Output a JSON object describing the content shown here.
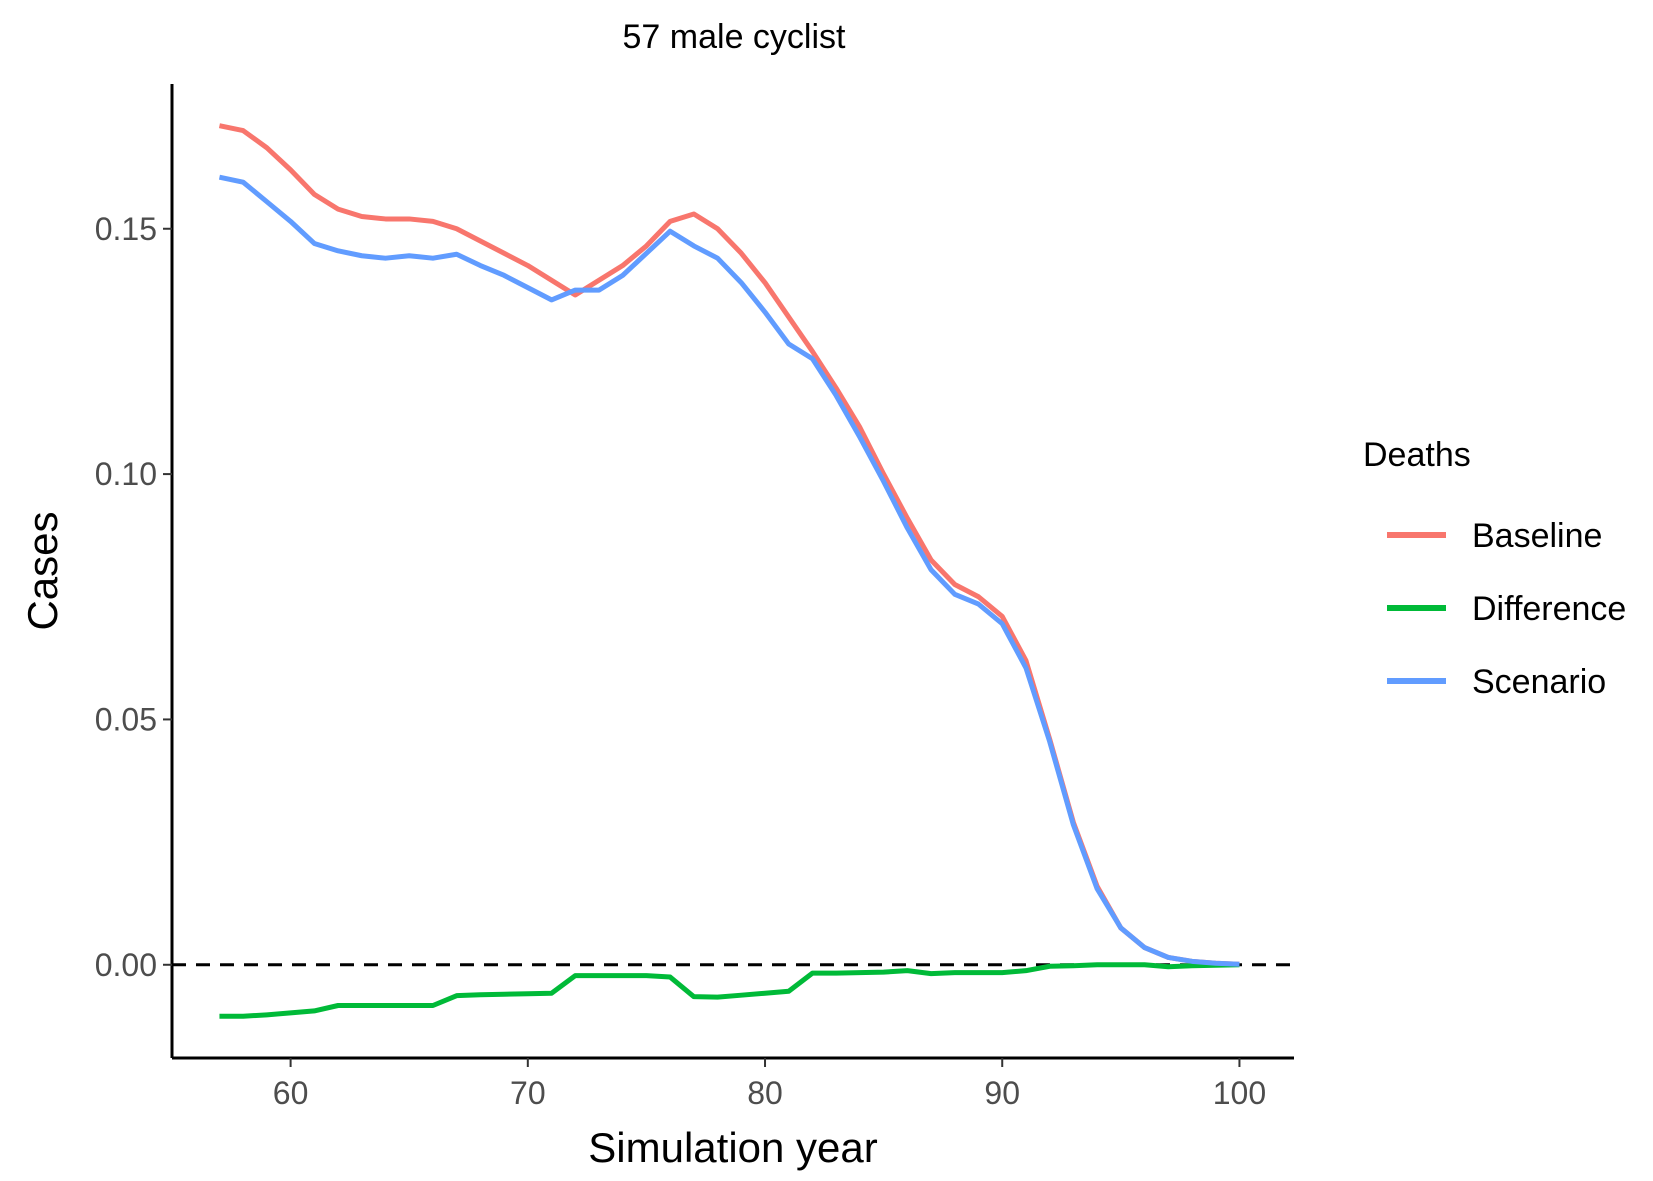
{
  "chart_data": {
    "type": "line",
    "title": "57 male cyclist",
    "xlabel": "Simulation year",
    "ylabel": "Cases",
    "xlim": [
      55,
      102.3
    ],
    "ylim": [
      -0.019,
      0.1795
    ],
    "xticks": [
      60,
      70,
      80,
      90,
      100
    ],
    "yticks": [
      0.0,
      0.05,
      0.1,
      0.15
    ],
    "ytick_labels": [
      "0.00",
      "0.05",
      "0.10",
      "0.15"
    ],
    "xtick_labels": [
      "60",
      "70",
      "80",
      "90",
      "100"
    ],
    "grid": false,
    "reference_line": {
      "y": 0,
      "style": "dashed",
      "color": "#000000"
    },
    "legend": {
      "title": "Deaths",
      "position": "right"
    },
    "x": [
      57,
      58,
      59,
      60,
      61,
      62,
      63,
      64,
      65,
      66,
      67,
      68,
      69,
      70,
      71,
      72,
      73,
      74,
      75,
      76,
      77,
      78,
      79,
      80,
      81,
      82,
      83,
      84,
      85,
      86,
      87,
      88,
      89,
      90,
      91,
      92,
      93,
      94,
      95,
      96,
      97,
      98,
      99,
      100
    ],
    "series": [
      {
        "name": "Baseline",
        "color": "#F8766D",
        "values": [
          0.171,
          0.17,
          0.1665,
          0.162,
          0.157,
          0.154,
          0.1525,
          0.152,
          0.152,
          0.1515,
          0.15,
          0.1475,
          0.145,
          0.1425,
          0.1395,
          0.1365,
          0.1395,
          0.1425,
          0.1465,
          0.1515,
          0.153,
          0.15,
          0.145,
          0.139,
          0.132,
          0.125,
          0.1175,
          0.1095,
          0.1,
          0.091,
          0.0825,
          0.0775,
          0.075,
          0.071,
          0.062,
          0.046,
          0.029,
          0.016,
          0.0075,
          0.0035,
          0.0015,
          0.0007,
          0.0003,
          0.0001
        ]
      },
      {
        "name": "Difference",
        "color": "#00BA38",
        "values": [
          -0.0105,
          -0.0105,
          -0.0102,
          -0.0098,
          -0.0094,
          -0.0083,
          -0.0083,
          -0.0083,
          -0.0083,
          -0.0083,
          -0.0063,
          -0.0061,
          -0.006,
          -0.0059,
          -0.0058,
          -0.0022,
          -0.0022,
          -0.0022,
          -0.0022,
          -0.0025,
          -0.0065,
          -0.0066,
          -0.0062,
          -0.0058,
          -0.0054,
          -0.0017,
          -0.0017,
          -0.0016,
          -0.0015,
          -0.0012,
          -0.0018,
          -0.0016,
          -0.0016,
          -0.0016,
          -0.0012,
          -0.0003,
          -0.0002,
          0.0,
          0.0,
          0.0,
          -0.0004,
          -0.0002,
          -0.0001,
          0.0
        ]
      },
      {
        "name": "Scenario",
        "color": "#619CFF",
        "values": [
          0.1605,
          0.1595,
          0.1555,
          0.1515,
          0.147,
          0.1455,
          0.1445,
          0.144,
          0.1445,
          0.144,
          0.1448,
          0.1425,
          0.1405,
          0.138,
          0.1355,
          0.1375,
          0.1375,
          0.1405,
          0.145,
          0.1495,
          0.1465,
          0.144,
          0.139,
          0.133,
          0.1265,
          0.1235,
          0.116,
          0.1075,
          0.0985,
          0.089,
          0.0805,
          0.0755,
          0.0735,
          0.0695,
          0.0605,
          0.0455,
          0.0285,
          0.0155,
          0.0075,
          0.0035,
          0.0015,
          0.0007,
          0.0003,
          0.0001
        ]
      }
    ]
  }
}
